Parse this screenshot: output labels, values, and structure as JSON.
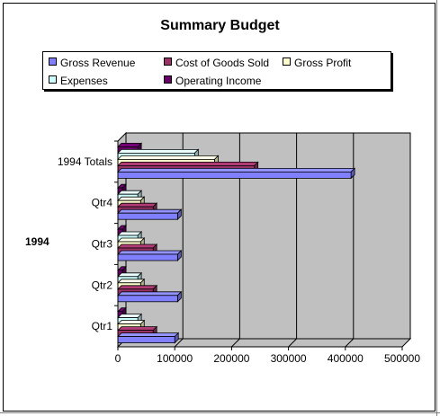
{
  "chart_data": {
    "type": "bar",
    "orientation": "horizontal",
    "three_d": true,
    "title": "Summary Budget",
    "group_label": "1994",
    "categories": [
      "Qtr1",
      "Qtr2",
      "Qtr3",
      "Qtr4",
      "1994 Totals"
    ],
    "series": [
      {
        "name": "Gross Revenue",
        "color": "#8080ff",
        "values": [
          100000,
          105000,
          105000,
          105000,
          410000
        ]
      },
      {
        "name": "Cost of Goods Sold",
        "color": "#993366",
        "values": [
          62000,
          62000,
          62000,
          62000,
          240000
        ]
      },
      {
        "name": "Gross Profit",
        "color": "#ffffcc",
        "values": [
          40000,
          40000,
          40000,
          40000,
          170000
        ]
      },
      {
        "name": "Expenses",
        "color": "#ccffff",
        "values": [
          35000,
          35000,
          35000,
          35000,
          135000
        ]
      },
      {
        "name": "Operating Income",
        "color": "#660066",
        "values": [
          8000,
          8000,
          8000,
          8000,
          35000
        ]
      }
    ],
    "xlim": [
      0,
      500000
    ],
    "x_ticks": [
      "0",
      "100000",
      "200000",
      "300000",
      "400000",
      "500000"
    ],
    "grid": true,
    "legend_position": "top"
  }
}
